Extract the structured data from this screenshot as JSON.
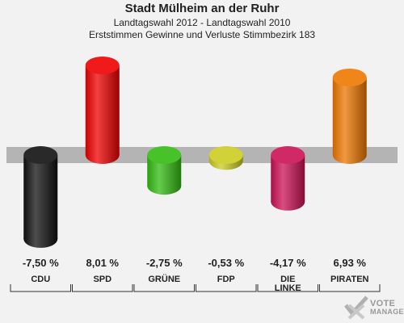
{
  "header": {
    "title": "Stadt Mülheim an der Ruhr",
    "subtitle": "Landtagswahl 2012 - Landtagswahl 2010",
    "description": "Erststimmen Gewinne und Verluste Stimmbezirk 183"
  },
  "logo": {
    "line1": "VOTE",
    "line2": "MANAGER",
    "icon": "checkmark-x-icon"
  },
  "chart_data": {
    "type": "bar",
    "title": "Stadt Mülheim an der Ruhr",
    "subtitle": "Landtagswahl 2012 - Landtagswahl 2010 — Erststimmen Gewinne und Verluste Stimmbezirk 183",
    "categories": [
      "CDU",
      "SPD",
      "GRÜNE",
      "FDP",
      "DIE LINKE",
      "PIRATEN"
    ],
    "values": [
      -7.5,
      8.01,
      -2.75,
      -0.53,
      -4.17,
      6.93
    ],
    "value_labels": [
      "-7,50 %",
      "8,01 %",
      "-2,75 %",
      "-0,53 %",
      "-4,17 %",
      "6,93 %"
    ],
    "unit": "%",
    "colors": [
      "#111111",
      "#ee0000",
      "#33bb11",
      "#cccc22",
      "#cc1155",
      "#ee7700"
    ],
    "ylim": [
      -8.5,
      8.5
    ],
    "grid": false
  }
}
